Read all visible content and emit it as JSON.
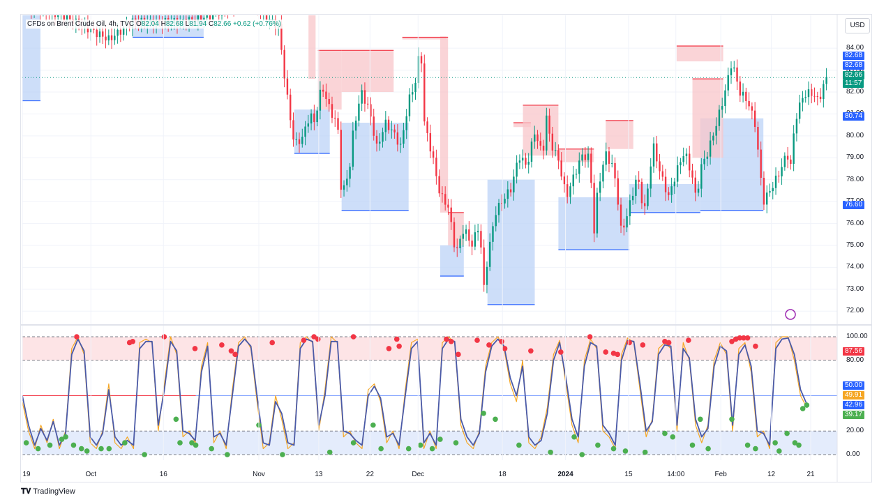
{
  "header": {
    "symbol": "CFDs on Brent Crude Oil, 4h, TVC",
    "open_label": "O",
    "open": "82.04",
    "high_label": "H",
    "high": "82.68",
    "low_label": "L",
    "low": "81.94",
    "close_label": "C",
    "close": "82.66",
    "change": "+0.62 (+0.76%)"
  },
  "currency_button": "USD",
  "footer": {
    "brand": "TradingView"
  },
  "colors": {
    "up": "#089981",
    "down": "#f23645",
    "k_line": "#4a5aa8",
    "d_line": "#f5a623",
    "supply_zone": "#f8c6c9",
    "demand_zone": "#bcd3f7",
    "overbought": "#fde4e6",
    "oversold": "#e4ecfc"
  },
  "chart_data": [
    {
      "type": "candlestick",
      "title": "CFDs on Brent Crude Oil, 4h, TVC",
      "ylim": [
        71.5,
        85.5
      ],
      "y_ticks": [
        "84.00",
        "83.00",
        "82.00",
        "81.00",
        "80.00",
        "79.00",
        "78.00",
        "77.00",
        "76.00",
        "75.00",
        "74.00",
        "73.00",
        "72.00"
      ],
      "price_labels": [
        {
          "value": "82.68",
          "kind": "high",
          "color": "#2962ff"
        },
        {
          "value": "82.68",
          "kind": "high",
          "color": "#2962ff"
        },
        {
          "value": "82.66",
          "kind": "last",
          "color": "#089981"
        },
        {
          "value": "11:57",
          "kind": "countdown",
          "color": "#089981"
        },
        {
          "value": "80.74",
          "kind": "level",
          "color": "#2962ff"
        },
        {
          "value": "76.60",
          "kind": "level",
          "color": "#2962ff"
        }
      ],
      "x_ticks": [
        {
          "label": "19",
          "pos": 0.0
        },
        {
          "label": "Oct",
          "pos": 0.087
        },
        {
          "label": "16",
          "pos": 0.179
        },
        {
          "label": "Nov",
          "pos": 0.3
        },
        {
          "label": "13",
          "pos": 0.376
        },
        {
          "label": "22",
          "pos": 0.441
        },
        {
          "label": "Dec",
          "pos": 0.502
        },
        {
          "label": "18",
          "pos": 0.609
        },
        {
          "label": "2024",
          "pos": 0.689,
          "bold": true
        },
        {
          "label": "15",
          "pos": 0.769
        },
        {
          "label": "14:00",
          "pos": 0.829
        },
        {
          "label": "Feb",
          "pos": 0.886
        },
        {
          "label": "12",
          "pos": 0.95
        },
        {
          "label": "21",
          "pos": 1.0
        }
      ],
      "close_path": [
        [
          0,
          86.0
        ],
        [
          0.05,
          85.5
        ],
        [
          0.11,
          84.4
        ],
        [
          0.14,
          85.2
        ],
        [
          0.2,
          85.2
        ],
        [
          0.24,
          85.5
        ],
        [
          0.27,
          86.0
        ],
        [
          0.29,
          86.2
        ],
        [
          0.31,
          85.4
        ],
        [
          0.325,
          85.0
        ],
        [
          0.335,
          82.0
        ],
        [
          0.345,
          79.6
        ],
        [
          0.355,
          79.9
        ],
        [
          0.365,
          81.0
        ],
        [
          0.37,
          80.6
        ],
        [
          0.38,
          82.3
        ],
        [
          0.39,
          81.2
        ],
        [
          0.4,
          80.5
        ],
        [
          0.405,
          77.2
        ],
        [
          0.415,
          78.5
        ],
        [
          0.42,
          80.3
        ],
        [
          0.43,
          82.0
        ],
        [
          0.44,
          81.2
        ],
        [
          0.45,
          79.4
        ],
        [
          0.46,
          80.6
        ],
        [
          0.47,
          80.2
        ],
        [
          0.48,
          79.5
        ],
        [
          0.49,
          81.6
        ],
        [
          0.5,
          82.6
        ],
        [
          0.505,
          84.4
        ],
        [
          0.51,
          80.6
        ],
        [
          0.52,
          79.1
        ],
        [
          0.53,
          77.3
        ],
        [
          0.54,
          76.8
        ],
        [
          0.55,
          74.6
        ],
        [
          0.56,
          75.8
        ],
        [
          0.57,
          75.0
        ],
        [
          0.58,
          76.0
        ],
        [
          0.585,
          72.9
        ],
        [
          0.59,
          74.4
        ],
        [
          0.6,
          76.5
        ],
        [
          0.61,
          77.1
        ],
        [
          0.62,
          77.6
        ],
        [
          0.63,
          79.1
        ],
        [
          0.64,
          78.6
        ],
        [
          0.65,
          80.2
        ],
        [
          0.66,
          79.1
        ],
        [
          0.665,
          80.9
        ],
        [
          0.67,
          79.7
        ],
        [
          0.68,
          78.9
        ],
        [
          0.69,
          77.2
        ],
        [
          0.7,
          78.2
        ],
        [
          0.71,
          79.1
        ],
        [
          0.72,
          79.0
        ],
        [
          0.725,
          75.5
        ],
        [
          0.73,
          77.6
        ],
        [
          0.74,
          79.2
        ],
        [
          0.75,
          78.5
        ],
        [
          0.755,
          77.2
        ],
        [
          0.76,
          75.5
        ],
        [
          0.77,
          76.8
        ],
        [
          0.78,
          78.2
        ],
        [
          0.785,
          77.2
        ],
        [
          0.79,
          76.6
        ],
        [
          0.8,
          79.6
        ],
        [
          0.81,
          78.2
        ],
        [
          0.82,
          77.2
        ],
        [
          0.83,
          78.4
        ],
        [
          0.84,
          79.3
        ],
        [
          0.85,
          78.1
        ],
        [
          0.855,
          77.0
        ],
        [
          0.86,
          78.5
        ],
        [
          0.87,
          79.3
        ],
        [
          0.88,
          80.5
        ],
        [
          0.89,
          81.8
        ],
        [
          0.9,
          83.4
        ],
        [
          0.91,
          82.0
        ],
        [
          0.92,
          81.6
        ],
        [
          0.93,
          80.5
        ],
        [
          0.935,
          78.6
        ],
        [
          0.94,
          77.0
        ],
        [
          0.95,
          77.6
        ],
        [
          0.96,
          78.3
        ],
        [
          0.97,
          79.2
        ],
        [
          0.975,
          78.6
        ],
        [
          0.98,
          80.7
        ],
        [
          0.99,
          81.8
        ],
        [
          1.0,
          82.0
        ],
        [
          1.01,
          81.6
        ],
        [
          1.02,
          82.66
        ]
      ],
      "supply_zones": [
        {
          "x0": 0.363,
          "x1": 0.372,
          "top": 86.0,
          "bottom": 82.6
        },
        {
          "x0": 0.375,
          "x1": 0.405,
          "top": 83.9,
          "bottom": 81.2
        },
        {
          "x0": 0.405,
          "x1": 0.471,
          "top": 83.9,
          "bottom": 82.0
        },
        {
          "x0": 0.482,
          "x1": 0.538,
          "top": 84.5,
          "bottom": 84.4
        },
        {
          "x0": 0.53,
          "x1": 0.54,
          "top": 84.5,
          "bottom": 76.5
        },
        {
          "x0": 0.54,
          "x1": 0.56,
          "top": 76.5,
          "bottom": 75.0
        },
        {
          "x0": 0.623,
          "x1": 0.645,
          "top": 80.6,
          "bottom": 80.4
        },
        {
          "x0": 0.635,
          "x1": 0.68,
          "top": 81.4,
          "bottom": 79.1
        },
        {
          "x0": 0.68,
          "x1": 0.725,
          "top": 79.4,
          "bottom": 78.8
        },
        {
          "x0": 0.74,
          "x1": 0.775,
          "top": 80.7,
          "bottom": 79.4
        },
        {
          "x0": 0.83,
          "x1": 0.889,
          "top": 84.1,
          "bottom": 83.4
        },
        {
          "x0": 0.85,
          "x1": 0.889,
          "top": 82.6,
          "bottom": 79.0
        }
      ],
      "demand_zones": [
        {
          "x0": 0.0,
          "x1": 0.023,
          "top": 86.0,
          "bottom": 81.6
        },
        {
          "x0": 0.14,
          "x1": 0.23,
          "top": 86.0,
          "bottom": 84.5
        },
        {
          "x0": 0.345,
          "x1": 0.39,
          "top": 81.2,
          "bottom": 79.2
        },
        {
          "x0": 0.405,
          "x1": 0.49,
          "top": 80.6,
          "bottom": 76.6
        },
        {
          "x0": 0.53,
          "x1": 0.56,
          "top": 75.0,
          "bottom": 73.6
        },
        {
          "x0": 0.59,
          "x1": 0.65,
          "top": 78.0,
          "bottom": 72.3
        },
        {
          "x0": 0.68,
          "x1": 0.77,
          "top": 77.2,
          "bottom": 74.8
        },
        {
          "x0": 0.77,
          "x1": 0.86,
          "top": 77.8,
          "bottom": 76.5
        },
        {
          "x0": 0.86,
          "x1": 0.94,
          "top": 80.8,
          "bottom": 76.6
        }
      ]
    },
    {
      "type": "line",
      "title": "",
      "ylim": [
        0,
        100
      ],
      "y_ticks": [
        "100.00",
        "80.00",
        "20.00",
        "0.00"
      ],
      "bands": {
        "upper": [
          80,
          100
        ],
        "lower": [
          0,
          20
        ]
      },
      "level_lines": [
        50
      ],
      "value_labels": [
        {
          "value": "87.56",
          "color": "#f23645"
        },
        {
          "value": "50.00",
          "color": "#2962ff"
        },
        {
          "value": "49.91",
          "color": "#f5a623"
        },
        {
          "value": "42.96",
          "color": "#2962ff"
        },
        {
          "value": "39.17",
          "color": "#4caf50"
        }
      ],
      "series": [
        {
          "values": [
            45,
            20,
            5,
            25,
            10,
            30,
            5,
            20,
            90,
            100,
            85,
            10,
            5,
            20,
            60,
            10,
            5,
            15,
            5,
            95,
            98,
            95,
            20,
            60,
            100,
            85,
            15,
            20,
            10,
            75,
            95,
            10,
            20,
            5,
            55,
            95,
            100,
            90,
            45,
            5,
            10,
            50,
            30,
            5,
            10,
            95,
            100,
            95,
            20,
            55,
            100,
            95,
            15,
            20,
            10,
            5,
            55,
            60,
            45,
            10,
            20,
            5,
            55,
            95,
            98,
            5,
            20,
            5,
            95,
            100,
            95,
            25,
            10,
            5,
            20,
            75,
            95,
            100,
            90,
            60,
            45,
            80,
            10,
            5,
            15,
            40,
            85,
            97,
            60,
            25,
            10,
            80,
            98,
            90,
            20,
            15,
            5,
            85,
            99,
            95,
            55,
            15,
            30,
            90,
            95,
            90,
            20,
            95,
            80,
            25,
            10,
            25,
            80,
            95,
            85,
            20,
            90,
            95,
            70,
            15,
            20,
            5,
            95,
            100,
            100,
            80,
            50,
            40
          ]
        },
        {
          "values": [
            50,
            25,
            8,
            22,
            12,
            28,
            8,
            18,
            85,
            98,
            88,
            15,
            8,
            18,
            55,
            15,
            8,
            12,
            8,
            90,
            96,
            96,
            25,
            55,
            96,
            88,
            20,
            18,
            12,
            70,
            92,
            15,
            18,
            8,
            50,
            92,
            98,
            92,
            50,
            10,
            8,
            45,
            35,
            10,
            8,
            90,
            98,
            96,
            25,
            50,
            96,
            96,
            20,
            18,
            12,
            8,
            50,
            58,
            48,
            15,
            18,
            8,
            50,
            90,
            96,
            10,
            18,
            8,
            90,
            98,
            96,
            30,
            15,
            8,
            18,
            70,
            92,
            98,
            92,
            65,
            50,
            75,
            15,
            8,
            12,
            35,
            80,
            95,
            65,
            30,
            15,
            75,
            95,
            92,
            25,
            18,
            8,
            80,
            97,
            96,
            60,
            20,
            28,
            85,
            93,
            92,
            25,
            90,
            82,
            30,
            15,
            22,
            75,
            92,
            88,
            25,
            85,
            93,
            75,
            20,
            18,
            8,
            90,
            98,
            99,
            85,
            55,
            43
          ]
        }
      ],
      "markers_overbought": [
        [
          0.069,
          100
        ],
        [
          0.136,
          95
        ],
        [
          0.14,
          96
        ],
        [
          0.18,
          100
        ],
        [
          0.219,
          90
        ],
        [
          0.253,
          93
        ],
        [
          0.265,
          88
        ],
        [
          0.27,
          85
        ],
        [
          0.317,
          95
        ],
        [
          0.357,
          97
        ],
        [
          0.37,
          100
        ],
        [
          0.375,
          98
        ],
        [
          0.42,
          100
        ],
        [
          0.465,
          90
        ],
        [
          0.475,
          98
        ],
        [
          0.478,
          92
        ],
        [
          0.538,
          98
        ],
        [
          0.544,
          96
        ],
        [
          0.553,
          85
        ],
        [
          0.577,
          97
        ],
        [
          0.592,
          93
        ],
        [
          0.608,
          96
        ],
        [
          0.612,
          90
        ],
        [
          0.645,
          88
        ],
        [
          0.683,
          87
        ],
        [
          0.72,
          100
        ],
        [
          0.74,
          87
        ],
        [
          0.75,
          86
        ],
        [
          0.755,
          85
        ],
        [
          0.77,
          95
        ],
        [
          0.787,
          93
        ],
        [
          0.815,
          96
        ],
        [
          0.82,
          95
        ],
        [
          0.845,
          97
        ],
        [
          0.9,
          96
        ],
        [
          0.905,
          98
        ],
        [
          0.91,
          99
        ],
        [
          0.915,
          99
        ],
        [
          0.92,
          99
        ],
        [
          0.93,
          92
        ]
      ],
      "markers_oversold": [
        [
          0.005,
          10
        ],
        [
          0.02,
          5
        ],
        [
          0.035,
          8
        ],
        [
          0.05,
          13
        ],
        [
          0.055,
          15
        ],
        [
          0.065,
          8
        ],
        [
          0.075,
          5
        ],
        [
          0.082,
          3
        ],
        [
          0.1,
          5
        ],
        [
          0.11,
          5
        ],
        [
          0.13,
          10
        ],
        [
          0.155,
          0
        ],
        [
          0.195,
          30
        ],
        [
          0.2,
          10
        ],
        [
          0.215,
          10
        ],
        [
          0.22,
          8
        ],
        [
          0.24,
          5
        ],
        [
          0.26,
          0
        ],
        [
          0.3,
          25
        ],
        [
          0.33,
          0
        ],
        [
          0.39,
          2
        ],
        [
          0.42,
          10
        ],
        [
          0.445,
          25
        ],
        [
          0.455,
          5
        ],
        [
          0.49,
          5
        ],
        [
          0.505,
          8
        ],
        [
          0.52,
          5
        ],
        [
          0.53,
          13
        ],
        [
          0.55,
          10
        ],
        [
          0.585,
          35
        ],
        [
          0.6,
          30
        ],
        [
          0.63,
          8
        ],
        [
          0.67,
          2
        ],
        [
          0.7,
          15
        ],
        [
          0.71,
          0
        ],
        [
          0.73,
          8
        ],
        [
          0.75,
          5
        ],
        [
          0.765,
          3
        ],
        [
          0.79,
          2
        ],
        [
          0.815,
          18
        ],
        [
          0.825,
          15
        ],
        [
          0.85,
          8
        ],
        [
          0.86,
          30
        ],
        [
          0.87,
          5
        ],
        [
          0.9,
          30
        ],
        [
          0.92,
          8
        ],
        [
          0.93,
          5
        ],
        [
          0.955,
          10
        ],
        [
          0.96,
          3
        ],
        [
          0.97,
          18
        ],
        [
          0.98,
          10
        ],
        [
          0.985,
          8
        ],
        [
          0.99,
          39
        ],
        [
          0.995,
          42
        ]
      ]
    }
  ]
}
